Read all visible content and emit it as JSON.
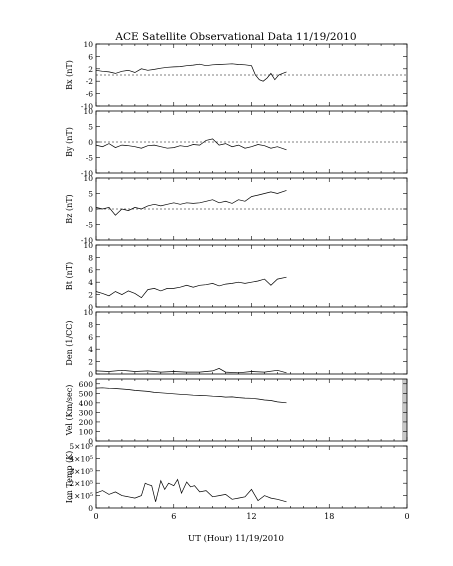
{
  "title": "ACE Satellite Observational Data   11/19/2010",
  "xlabel": "UT (Hour)   11/19/2010",
  "x_ticks": [
    "0",
    "6",
    "12",
    "18",
    "0"
  ],
  "chart_data": [
    {
      "type": "line",
      "ylabel": "Bx (nT)",
      "ylim": [
        -10,
        10
      ],
      "yticks": [
        "10",
        "6",
        "2",
        "-2",
        "-6",
        "-10"
      ],
      "zero_line": true,
      "series": [
        {
          "x": [
            0,
            0.5,
            1,
            1.5,
            2,
            2.5,
            3,
            3.5,
            4,
            4.5,
            5,
            5.5,
            6,
            6.5,
            7,
            7.5,
            8,
            8.5,
            9,
            9.5,
            10,
            10.5,
            11,
            11.5,
            12,
            12.3,
            12.6,
            12.9,
            13.2,
            13.5,
            13.8,
            14.1,
            14.4,
            14.7
          ],
          "y": [
            1.5,
            1.2,
            1,
            0.5,
            1.2,
            1.5,
            0.8,
            2,
            1.5,
            1.8,
            2.2,
            2.5,
            2.6,
            2.7,
            3,
            3.2,
            3.5,
            3,
            3.3,
            3.4,
            3.5,
            3.6,
            3.4,
            3.3,
            3,
            0,
            -1.5,
            -2,
            -1,
            0.5,
            -1.5,
            0,
            0.5,
            1
          ]
        }
      ]
    },
    {
      "type": "line",
      "ylabel": "By (nT)",
      "ylim": [
        -10,
        10
      ],
      "yticks": [
        "10",
        "5",
        "0",
        "-5",
        "-10"
      ],
      "zero_line": true,
      "series": [
        {
          "x": [
            0,
            0.5,
            1,
            1.5,
            2,
            2.5,
            3,
            3.5,
            4,
            4.5,
            5,
            5.5,
            6,
            6.5,
            7,
            7.5,
            8,
            8.5,
            9,
            9.5,
            10,
            10.5,
            11,
            11.5,
            12,
            12.5,
            13,
            13.5,
            14,
            14.7
          ],
          "y": [
            -1,
            -1.5,
            -0.5,
            -1.8,
            -1,
            -1.2,
            -1.5,
            -2,
            -1.2,
            -1,
            -1.5,
            -2,
            -1.8,
            -1.2,
            -1.5,
            -0.8,
            -1,
            0.5,
            1,
            -1,
            -0.5,
            -1.5,
            -1,
            -2,
            -1.5,
            -0.8,
            -1.2,
            -2,
            -1.5,
            -2.5
          ]
        }
      ]
    },
    {
      "type": "line",
      "ylabel": "Bz (nT)",
      "ylim": [
        -10,
        10
      ],
      "yticks": [
        "10",
        "5",
        "0",
        "-5",
        "-10"
      ],
      "zero_line": true,
      "series": [
        {
          "x": [
            0,
            0.5,
            1,
            1.5,
            2,
            2.5,
            3,
            3.5,
            4,
            4.5,
            5,
            5.5,
            6,
            6.5,
            7,
            7.5,
            8,
            8.5,
            9,
            9.5,
            10,
            10.5,
            11,
            11.5,
            12,
            12.5,
            13,
            13.5,
            14,
            14.7
          ],
          "y": [
            0.5,
            0,
            0.5,
            -2,
            0,
            -0.5,
            0.5,
            0,
            1,
            1.5,
            1,
            1.5,
            2,
            1.5,
            2,
            1.8,
            2,
            2.5,
            3,
            2,
            2.5,
            1.8,
            3,
            2.5,
            4,
            4.5,
            5,
            5.5,
            5,
            6
          ]
        }
      ]
    },
    {
      "type": "line",
      "ylabel": "Bt (nT)",
      "ylim": [
        0,
        10
      ],
      "yticks": [
        "10",
        "8",
        "6",
        "4",
        "2",
        "0"
      ],
      "zero_line": false,
      "series": [
        {
          "x": [
            0,
            0.5,
            1,
            1.5,
            2,
            2.5,
            3,
            3.5,
            4,
            4.5,
            5,
            5.5,
            6,
            6.5,
            7,
            7.5,
            8,
            8.5,
            9,
            9.5,
            10,
            10.5,
            11,
            11.5,
            12,
            12.5,
            13,
            13.5,
            14,
            14.7
          ],
          "y": [
            2.5,
            2.2,
            1.8,
            2.5,
            2,
            2.6,
            2.2,
            1.5,
            2.8,
            3,
            2.6,
            3,
            3,
            3.2,
            3.5,
            3.2,
            3.5,
            3.6,
            3.8,
            3.4,
            3.7,
            3.8,
            4,
            3.8,
            4,
            4.2,
            4.5,
            3.5,
            4.5,
            4.8
          ]
        }
      ]
    },
    {
      "type": "line",
      "ylabel": "Den (1/CC)",
      "ylim": [
        0,
        10
      ],
      "yticks": [
        "10",
        "8",
        "6",
        "4",
        "2",
        "0"
      ],
      "zero_line": false,
      "series": [
        {
          "x": [
            0,
            1,
            2,
            3,
            4,
            5,
            6,
            7,
            8,
            9,
            9.5,
            10,
            11,
            12,
            13,
            14,
            14.7
          ],
          "y": [
            0.5,
            0.4,
            0.6,
            0.4,
            0.5,
            0.3,
            0.4,
            0.3,
            0.3,
            0.5,
            0.9,
            0.3,
            0.2,
            0.4,
            0.3,
            0.6,
            0.2
          ]
        }
      ]
    },
    {
      "type": "line",
      "ylabel": "Vel (Km/sec)",
      "ylim": [
        0,
        650
      ],
      "yticks": [
        "600",
        "500",
        "400",
        "300",
        "200",
        "100",
        "0"
      ],
      "zero_line": false,
      "right_gap": true,
      "series": [
        {
          "x": [
            0,
            0.5,
            1,
            1.5,
            2,
            2.5,
            3,
            3.5,
            4,
            4.5,
            5,
            5.5,
            6,
            6.5,
            7,
            7.5,
            8,
            8.5,
            9,
            9.5,
            10,
            10.5,
            11,
            11.5,
            12,
            12.5,
            13,
            13.5,
            14,
            14.7
          ],
          "y": [
            555,
            558,
            552,
            550,
            545,
            540,
            530,
            525,
            520,
            510,
            505,
            500,
            495,
            490,
            485,
            480,
            478,
            475,
            470,
            468,
            460,
            462,
            455,
            450,
            448,
            440,
            430,
            425,
            410,
            400
          ]
        }
      ]
    },
    {
      "type": "line",
      "ylabel": "Ion Temp (K)",
      "ylim": [
        0,
        500000
      ],
      "yticks": [
        "5×10⁵",
        "4×10⁵",
        "3×10⁵",
        "2×10⁵",
        "1×10⁵",
        "0"
      ],
      "zero_line": false,
      "series": [
        {
          "x": [
            0,
            0.5,
            1,
            1.5,
            2,
            2.5,
            3,
            3.5,
            3.8,
            4,
            4.3,
            4.6,
            5,
            5.3,
            5.6,
            6,
            6.3,
            6.6,
            7,
            7.3,
            7.6,
            8,
            8.5,
            9,
            9.5,
            10,
            10.5,
            11,
            11.5,
            12,
            12.5,
            13,
            13.5,
            14,
            14.7
          ],
          "y": [
            120000,
            140000,
            110000,
            130000,
            100000,
            90000,
            80000,
            100000,
            200000,
            190000,
            180000,
            50000,
            220000,
            150000,
            200000,
            180000,
            230000,
            120000,
            210000,
            170000,
            180000,
            130000,
            140000,
            90000,
            100000,
            110000,
            70000,
            80000,
            90000,
            150000,
            60000,
            100000,
            80000,
            70000,
            50000
          ]
        }
      ]
    }
  ]
}
